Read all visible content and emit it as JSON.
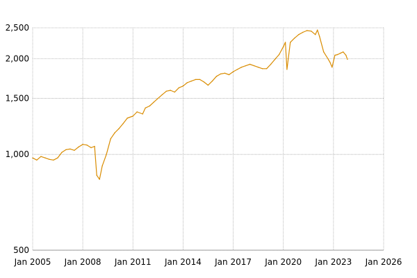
{
  "chart_data": {
    "type": "line",
    "title": "",
    "xlabel": "",
    "ylabel": "",
    "y_scale": "log",
    "grid": true,
    "legend": "none",
    "xlim": [
      "2005-01-01",
      "2026-01-01"
    ],
    "ylim": [
      500,
      2500
    ],
    "x_ticks": [
      {
        "date": "2005-01-01",
        "label": "Jan 2005"
      },
      {
        "date": "2008-01-01",
        "label": "Jan 2008"
      },
      {
        "date": "2011-01-01",
        "label": "Jan 2011"
      },
      {
        "date": "2014-01-01",
        "label": "Jan 2014"
      },
      {
        "date": "2017-01-01",
        "label": "Jan 2017"
      },
      {
        "date": "2020-01-01",
        "label": "Jan 2020"
      },
      {
        "date": "2023-01-01",
        "label": "Jan 2023"
      },
      {
        "date": "2026-01-01",
        "label": "Jan 2026"
      }
    ],
    "y_ticks": [
      {
        "value": 500,
        "label": "500"
      },
      {
        "value": 1000,
        "label": "1,000"
      },
      {
        "value": 1500,
        "label": "1,500"
      },
      {
        "value": 2000,
        "label": "2,000"
      },
      {
        "value": 2500,
        "label": "2,500"
      }
    ],
    "series": [
      {
        "color": "#d98c00",
        "x": [
          "2005-01-01",
          "2005-04-01",
          "2005-07-01",
          "2005-10-01",
          "2006-01-01",
          "2006-04-01",
          "2006-07-01",
          "2006-10-01",
          "2007-01-01",
          "2007-04-01",
          "2007-07-01",
          "2007-10-01",
          "2008-01-01",
          "2008-04-01",
          "2008-07-01",
          "2008-09-15",
          "2008-11-01",
          "2009-01-01",
          "2009-03-01",
          "2009-06-01",
          "2009-09-01",
          "2009-12-01",
          "2010-03-01",
          "2010-06-01",
          "2010-09-01",
          "2011-01-01",
          "2011-04-01",
          "2011-08-01",
          "2011-10-01",
          "2012-01-01",
          "2012-04-01",
          "2012-07-01",
          "2012-10-01",
          "2013-01-01",
          "2013-04-01",
          "2013-07-01",
          "2013-10-01",
          "2014-01-01",
          "2014-04-01",
          "2014-07-01",
          "2014-10-01",
          "2015-01-01",
          "2015-04-01",
          "2015-07-01",
          "2015-10-01",
          "2016-01-01",
          "2016-04-01",
          "2016-07-01",
          "2016-10-01",
          "2017-01-01",
          "2017-04-01",
          "2017-07-01",
          "2017-10-01",
          "2018-01-01",
          "2018-04-01",
          "2018-07-01",
          "2018-10-01",
          "2019-01-01",
          "2019-04-01",
          "2019-07-01",
          "2019-10-01",
          "2020-01-01",
          "2020-02-15",
          "2020-03-20",
          "2020-06-01",
          "2020-09-01",
          "2020-12-01",
          "2021-03-01",
          "2021-06-01",
          "2021-09-01",
          "2021-12-01",
          "2022-01-15",
          "2022-03-01",
          "2022-06-01",
          "2022-09-01",
          "2022-10-15",
          "2022-12-01",
          "2023-02-01",
          "2023-04-01",
          "2023-06-01",
          "2023-08-01",
          "2023-10-01",
          "2023-11-01"
        ],
        "values": [
          975,
          960,
          985,
          975,
          965,
          960,
          975,
          1015,
          1035,
          1040,
          1030,
          1055,
          1075,
          1070,
          1050,
          1060,
          860,
          835,
          920,
          1000,
          1120,
          1170,
          1205,
          1250,
          1300,
          1320,
          1360,
          1340,
          1400,
          1420,
          1460,
          1500,
          1540,
          1580,
          1590,
          1570,
          1620,
          1640,
          1680,
          1700,
          1720,
          1720,
          1690,
          1650,
          1700,
          1760,
          1790,
          1800,
          1780,
          1820,
          1850,
          1880,
          1900,
          1920,
          1900,
          1880,
          1860,
          1860,
          1920,
          1990,
          2060,
          2180,
          2250,
          1850,
          2250,
          2320,
          2380,
          2420,
          2450,
          2440,
          2380,
          2460,
          2350,
          2100,
          2000,
          1950,
          1880,
          2050,
          2060,
          2080,
          2100,
          2050,
          1990
        ]
      }
    ]
  }
}
